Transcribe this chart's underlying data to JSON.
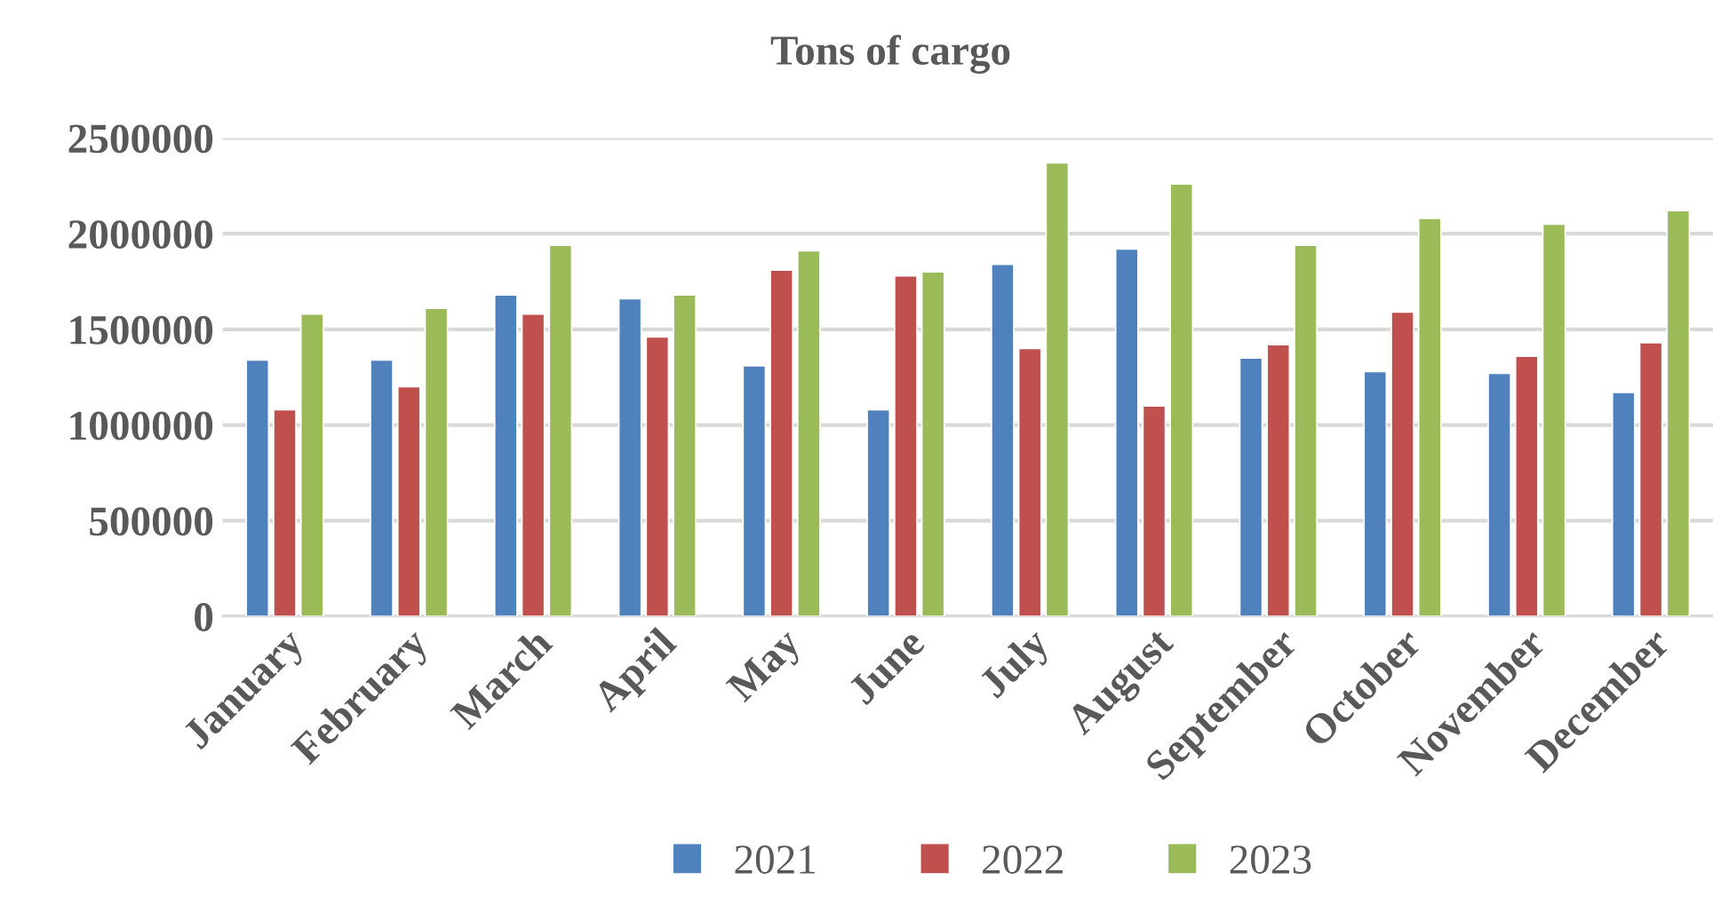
{
  "chart_data": {
    "type": "bar",
    "title": "Tons of cargo",
    "categories": [
      "January",
      "February",
      "March",
      "April",
      "May",
      "June",
      "July",
      "August",
      "September",
      "October",
      "November",
      "December"
    ],
    "series": [
      {
        "name": "2021",
        "color": "#4f81bd",
        "values": [
          1340000,
          1340000,
          1680000,
          1660000,
          1310000,
          1080000,
          1840000,
          1920000,
          1350000,
          1280000,
          1270000,
          1170000
        ]
      },
      {
        "name": "2022",
        "color": "#c0504d",
        "values": [
          1080000,
          1200000,
          1580000,
          1460000,
          1810000,
          1780000,
          1400000,
          1100000,
          1420000,
          1590000,
          1360000,
          1430000
        ]
      },
      {
        "name": "2023",
        "color": "#9bbb59",
        "values": [
          1580000,
          1610000,
          1940000,
          1680000,
          1910000,
          1800000,
          2370000,
          2260000,
          1940000,
          2080000,
          2050000,
          2120000
        ]
      }
    ],
    "ylim": [
      0,
      2500000
    ],
    "yticks": [
      0,
      500000,
      1000000,
      1500000,
      2000000,
      2500000
    ],
    "grid": "y",
    "legend": "bottom"
  }
}
